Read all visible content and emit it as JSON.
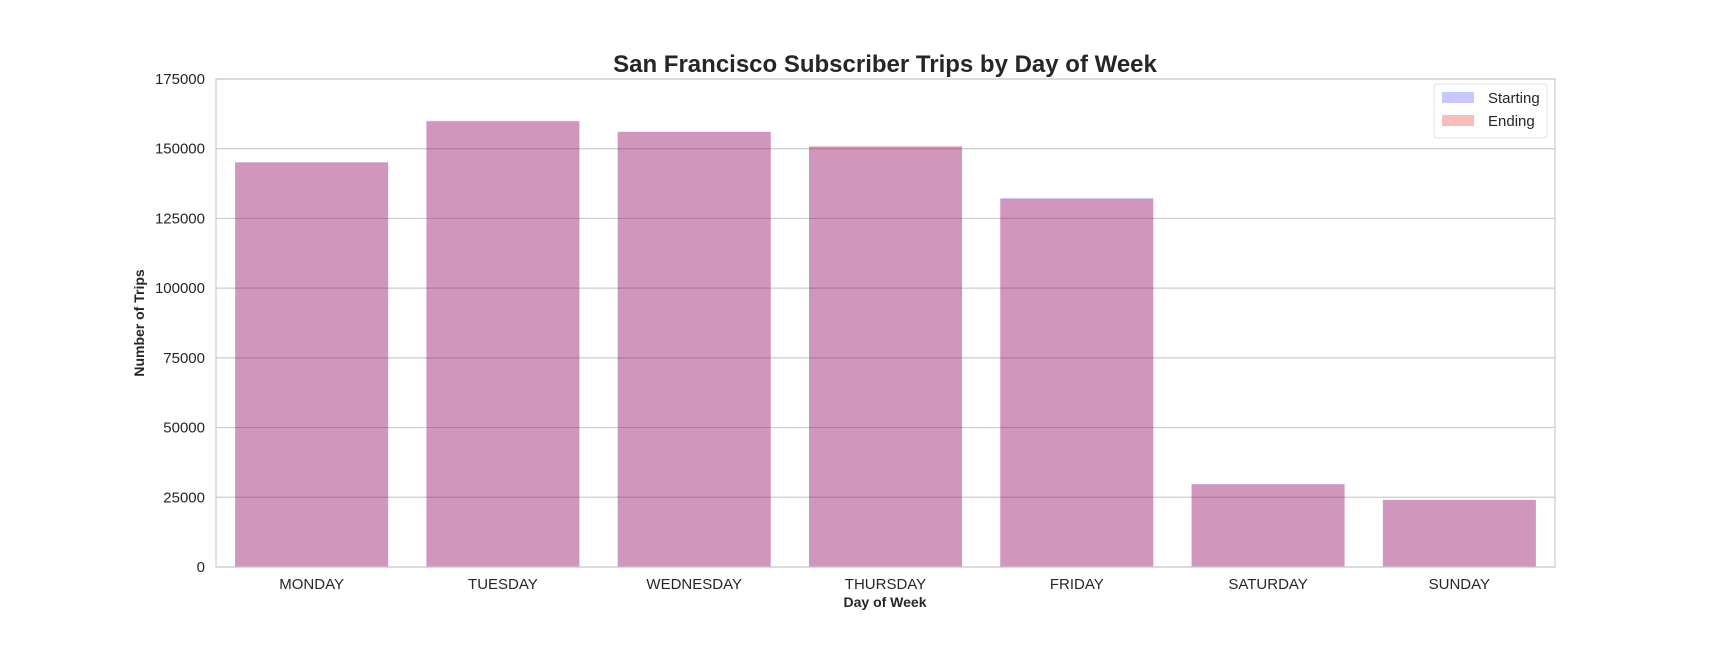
{
  "chart_data": {
    "type": "bar",
    "title": "San Francisco Subscriber Trips by Day of Week",
    "xlabel": "Day of Week",
    "ylabel": "Number of Trips",
    "categories": [
      "MONDAY",
      "TUESDAY",
      "WEDNESDAY",
      "THURSDAY",
      "FRIDAY",
      "SATURDAY",
      "SUNDAY"
    ],
    "series": [
      {
        "name": "Starting",
        "color": "#0000ff",
        "opacity": 0.22,
        "values": [
          145200,
          159800,
          156100,
          150700,
          132300,
          29800,
          24100
        ]
      },
      {
        "name": "Ending",
        "color": "#e8261f",
        "opacity": 0.3,
        "values": [
          145000,
          160000,
          156000,
          150900,
          132000,
          29600,
          24000
        ]
      }
    ],
    "ylim": [
      0,
      175000
    ],
    "yticks": [
      0,
      25000,
      50000,
      75000,
      100000,
      125000,
      150000,
      175000
    ],
    "grid": "y",
    "legend_position": "top-right"
  }
}
